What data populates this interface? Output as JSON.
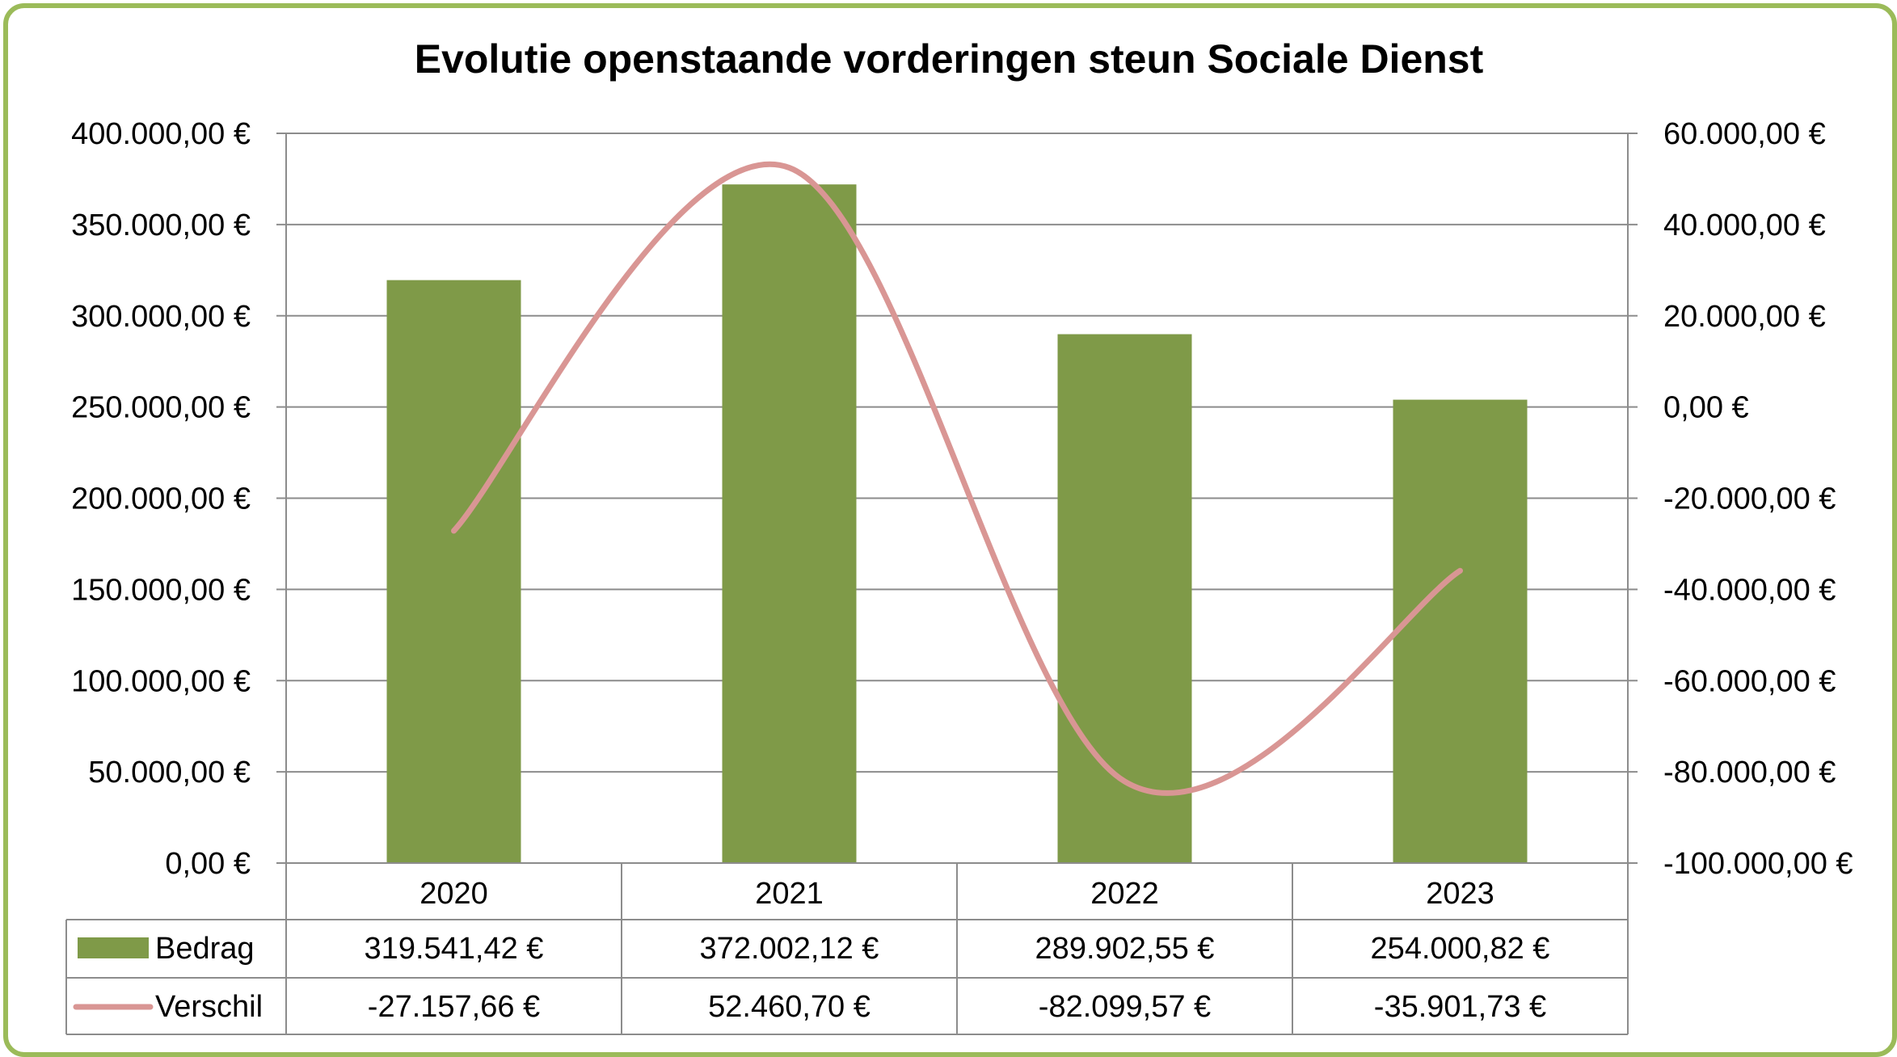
{
  "chart_data": {
    "type": "bar",
    "title": "Evolutie openstaande vorderingen steun Sociale Dienst",
    "categories": [
      "2020",
      "2021",
      "2022",
      "2023"
    ],
    "series": [
      {
        "name": "Bedrag",
        "type": "bar",
        "axis": "left",
        "color": "#7f9a48",
        "values": [
          319541.42,
          372002.12,
          289902.55,
          254000.82
        ],
        "labels": [
          "319.541,42 €",
          "372.002,12 €",
          "289.902,55 €",
          "254.000,82 €"
        ]
      },
      {
        "name": "Verschil",
        "type": "line",
        "smooth": true,
        "axis": "right",
        "color": "#d99694",
        "values": [
          -27157.66,
          52460.7,
          -82099.57,
          -35901.73
        ],
        "labels": [
          "-27.157,66 €",
          "52.460,70 €",
          "-82.099,57 €",
          "-35.901,73 €"
        ]
      }
    ],
    "y_left": {
      "min": 0,
      "max": 400000,
      "ticks": [
        "0,00 €",
        "50.000,00 €",
        "100.000,00 €",
        "150.000,00 €",
        "200.000,00 €",
        "250.000,00 €",
        "300.000,00 €",
        "350.000,00 €",
        "400.000,00 €"
      ]
    },
    "y_right": {
      "min": -100000,
      "max": 60000,
      "ticks": [
        "-100.000,00 €",
        "-80.000,00 €",
        "-60.000,00 €",
        "-40.000,00 €",
        "-20.000,00 €",
        "0,00 €",
        "20.000,00 €",
        "40.000,00 €",
        "60.000,00 €"
      ]
    },
    "grid": true,
    "legend": "data table below chart",
    "frame_color": "#9bbb59"
  }
}
